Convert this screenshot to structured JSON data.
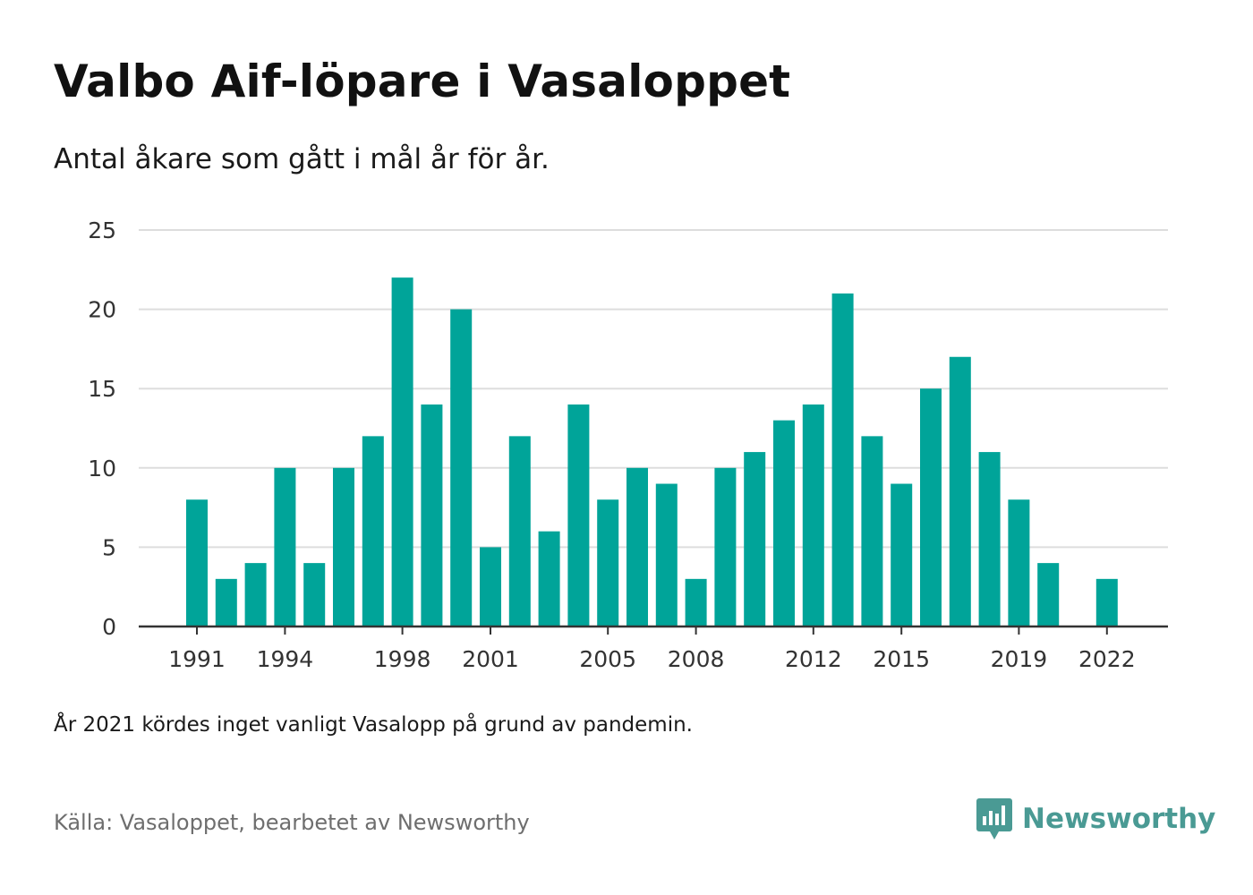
{
  "title": "Valbo Aif-löpare i Vasaloppet",
  "subtitle": "Antal åkare som gått i mål år för år.",
  "footnote": "År 2021 kördes inget vanligt Vasalopp på grund av pandemin.",
  "source": "Källa: Vasaloppet, bearbetet av Newsworthy",
  "brand": {
    "name": "Newsworthy",
    "color": "#4a9a94",
    "icon": "newsworthy-logo-icon"
  },
  "chart_data": {
    "type": "bar",
    "title": "Valbo Aif-löpare i Vasaloppet",
    "subtitle": "Antal åkare som gått i mål år för år.",
    "xlabel": "",
    "ylabel": "",
    "categories": [
      "1991",
      "1992",
      "1993",
      "1994",
      "1995",
      "1996",
      "1997",
      "1998",
      "1999",
      "2000",
      "2001",
      "2002",
      "2003",
      "2004",
      "2005",
      "2006",
      "2007",
      "2008",
      "2009",
      "2010",
      "2011",
      "2012",
      "2013",
      "2014",
      "2015",
      "2016",
      "2017",
      "2018",
      "2019",
      "2020",
      "2021",
      "2022"
    ],
    "values": [
      8,
      3,
      4,
      10,
      4,
      10,
      12,
      22,
      14,
      20,
      5,
      12,
      6,
      14,
      8,
      10,
      9,
      3,
      10,
      11,
      13,
      14,
      21,
      12,
      9,
      15,
      17,
      11,
      8,
      4,
      0,
      3
    ],
    "x_tick_labels": [
      "1991",
      "1994",
      "1998",
      "2001",
      "2005",
      "2008",
      "2012",
      "2015",
      "2019",
      "2022"
    ],
    "y_ticks": [
      0,
      5,
      10,
      15,
      20,
      25
    ],
    "ylim": [
      0,
      25
    ],
    "grid": true,
    "bar_color": "#00a499",
    "grid_color": "#dddddd",
    "axis_color": "#333333"
  }
}
